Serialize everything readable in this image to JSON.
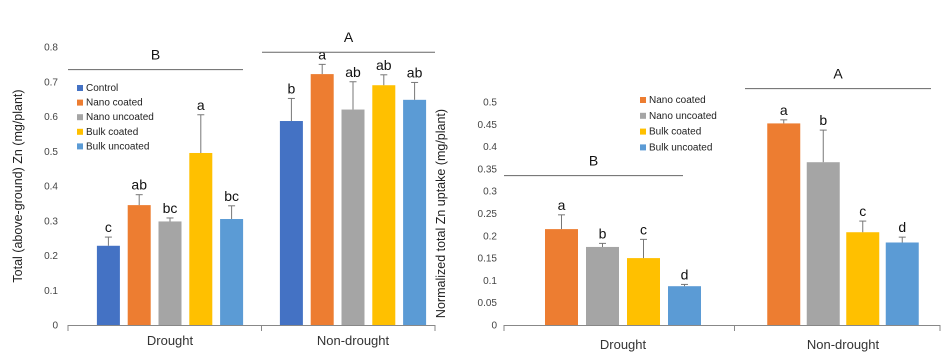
{
  "chart_data": [
    {
      "type": "bar",
      "ylabel": "Total (above-ground) Zn (mg/plant)",
      "ylim": [
        0,
        0.8
      ],
      "ytick_step": 0.1,
      "categories": [
        "Drought",
        "Non-drought"
      ],
      "legend": [
        "Control",
        "Nano coated",
        "Nano uncoated",
        "Bulk coated",
        "Bulk uncoated"
      ],
      "colors": [
        "#4472C4",
        "#ED7D31",
        "#A5A5A5",
        "#FFC000",
        "#5B9BD5"
      ],
      "series": [
        {
          "name": "Control",
          "values": [
            0.228,
            0.587
          ],
          "errors": [
            0.025,
            0.065
          ],
          "letters": [
            "c",
            "b"
          ]
        },
        {
          "name": "Nano coated",
          "values": [
            0.345,
            0.722
          ],
          "errors": [
            0.03,
            0.028
          ],
          "letters": [
            "ab",
            "a"
          ]
        },
        {
          "name": "Nano uncoated",
          "values": [
            0.298,
            0.62
          ],
          "errors": [
            0.01,
            0.08
          ],
          "letters": [
            "bc",
            "ab"
          ]
        },
        {
          "name": "Bulk coated",
          "values": [
            0.495,
            0.69
          ],
          "errors": [
            0.11,
            0.03
          ],
          "letters": [
            "a",
            "ab"
          ]
        },
        {
          "name": "Bulk uncoated",
          "values": [
            0.305,
            0.648
          ],
          "errors": [
            0.038,
            0.05
          ],
          "letters": [
            "bc",
            "ab"
          ]
        }
      ],
      "group_letters": [
        {
          "label": "B",
          "line_y": 0.735
        },
        {
          "label": "A",
          "line_y": 0.785
        }
      ]
    },
    {
      "type": "bar",
      "ylabel": "Normalized total Zn uptake (mg/plant)",
      "ylim": [
        0,
        0.5
      ],
      "ytick_step": 0.05,
      "categories": [
        "Drought",
        "Non-drought"
      ],
      "legend": [
        "Nano coated",
        "Nano uncoated",
        "Bulk coated",
        "Bulk uncoated"
      ],
      "colors": [
        "#ED7D31",
        "#A5A5A5",
        "#FFC000",
        "#5B9BD5"
      ],
      "series": [
        {
          "name": "Nano coated",
          "values": [
            0.215,
            0.452
          ],
          "errors": [
            0.032,
            0.008
          ],
          "letters": [
            "a",
            "a"
          ]
        },
        {
          "name": "Nano uncoated",
          "values": [
            0.175,
            0.365
          ],
          "errors": [
            0.008,
            0.072
          ],
          "letters": [
            "b",
            "b"
          ]
        },
        {
          "name": "Bulk coated",
          "values": [
            0.15,
            0.208
          ],
          "errors": [
            0.042,
            0.025
          ],
          "letters": [
            "c",
            "c"
          ]
        },
        {
          "name": "Bulk uncoated",
          "values": [
            0.087,
            0.185
          ],
          "errors": [
            0.004,
            0.012
          ],
          "letters": [
            "d",
            "d"
          ]
        }
      ],
      "group_letters": [
        {
          "label": "B",
          "line_y": 0.335
        },
        {
          "label": "A",
          "line_y": 0.53
        }
      ]
    }
  ]
}
